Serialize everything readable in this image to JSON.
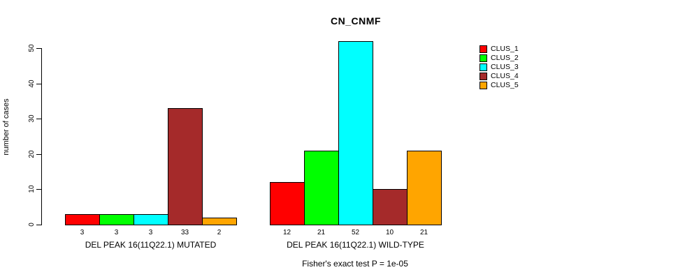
{
  "chart_data": {
    "type": "bar",
    "title": "CN_CNMF",
    "xlabel": "",
    "ylabel": "number of cases",
    "ylim": [
      0,
      52
    ],
    "yticks": [
      0,
      10,
      20,
      30,
      40,
      50
    ],
    "grid": false,
    "legend_position": "right",
    "categories": [
      "DEL PEAK 16(11Q22.1) MUTATED",
      "DEL PEAK 16(11Q22.1) WILD-TYPE"
    ],
    "series": [
      {
        "name": "CLUS_1",
        "color": "#FF0000",
        "values": [
          3,
          12
        ]
      },
      {
        "name": "CLUS_2",
        "color": "#00FF00",
        "values": [
          3,
          21
        ]
      },
      {
        "name": "CLUS_3",
        "color": "#00FFFF",
        "values": [
          3,
          52
        ]
      },
      {
        "name": "CLUS_4",
        "color": "#A52A2A",
        "values": [
          33,
          10
        ]
      },
      {
        "name": "CLUS_5",
        "color": "#FFA500",
        "values": [
          2,
          21
        ]
      }
    ],
    "bar_value_labels": [
      [
        "3",
        "3",
        "3",
        "33",
        "2"
      ],
      [
        "12",
        "21",
        "52",
        "10",
        "21"
      ]
    ],
    "annotation": "Fisher's exact test P = 1e-05",
    "colors": {
      "background": "#FFFFFF",
      "axis": "#000000",
      "text": "#000000"
    }
  }
}
